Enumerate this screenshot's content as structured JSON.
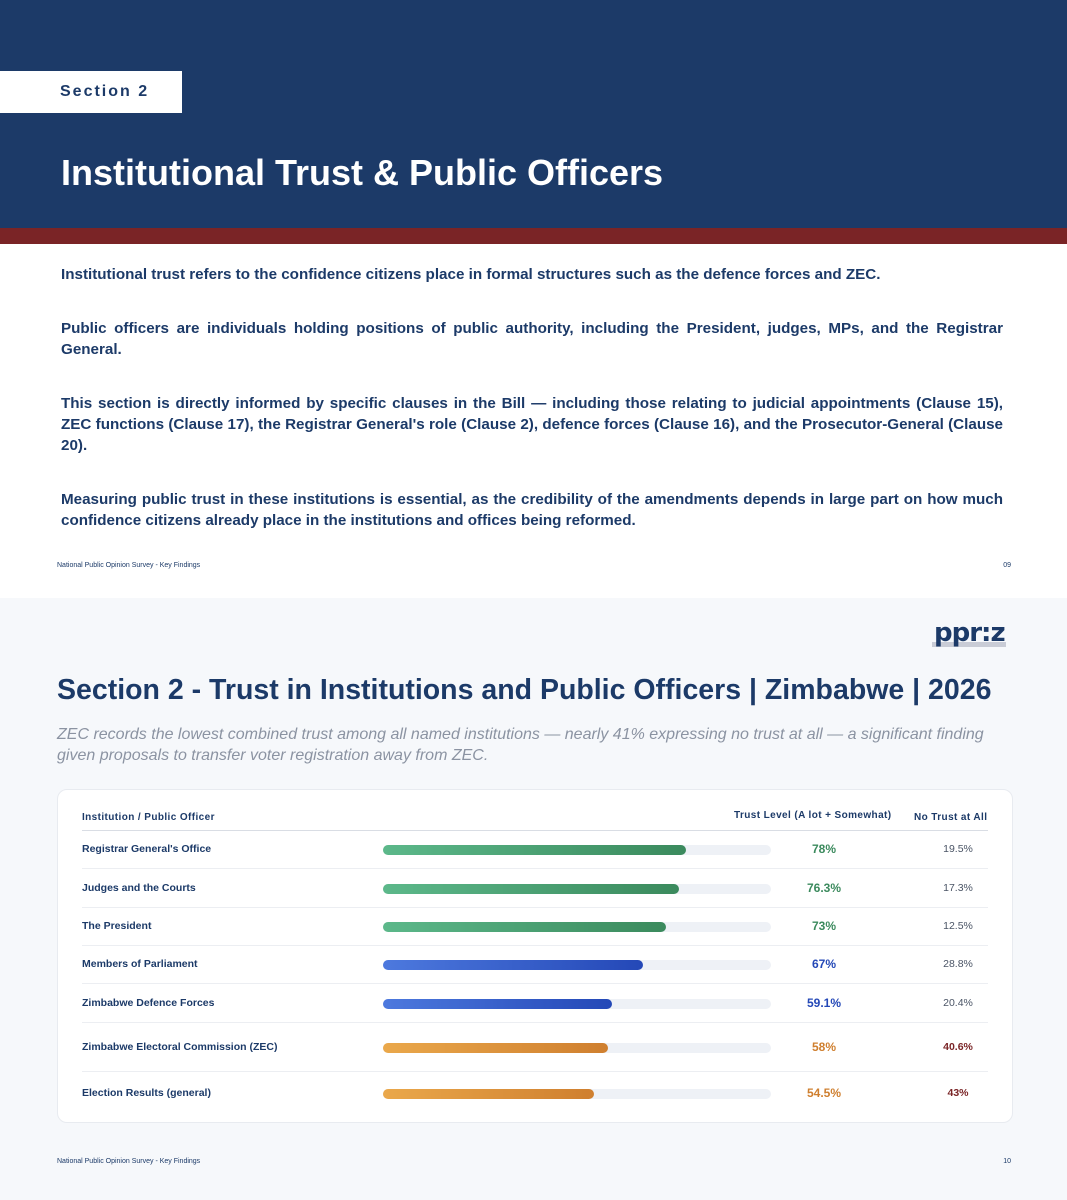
{
  "page1": {
    "section_tag": "Section 2",
    "title": "Institutional Trust & Public Officers",
    "paragraphs": [
      "Institutional trust refers to the confidence citizens place in formal structures such as the defence forces and ZEC.",
      "Public officers are individuals holding positions of public authority, including the President, judges, MPs, and the Registrar General.",
      "This section is directly informed by specific clauses in the Bill — including those relating to judicial appointments (Clause 15), ZEC functions (Clause 17), the Registrar General's role (Clause 2), defence forces (Clause 16), and the Prosecutor-General (Clause 20).",
      "Measuring public trust in these institutions is essential, as the credibility of the amendments depends in large part on how much confidence citizens already place in the institutions and offices being reformed."
    ],
    "footer": "National Public Opinion Survey - Key Findings",
    "page_number": "09",
    "colors": {
      "navy": "#1c3a68",
      "maroon": "#7a2426"
    }
  },
  "page2": {
    "logo": "ppr:z",
    "title": "Section 2 - Trust in Institutions and Public Officers | Zimbabwe | 2026",
    "subtitle": "ZEC records the lowest combined trust among all named institutions — nearly 41% expressing no trust at all — a significant finding given proposals to transfer voter registration away from ZEC.",
    "footer": "National Public Opinion Survey - Key Findings",
    "page_number": "10",
    "table_headers": {
      "institution": "Institution / Public Officer",
      "trust": "Trust Level (A lot + Somewhat)",
      "no_trust": "No Trust at All"
    }
  },
  "chart_data": {
    "type": "bar",
    "orientation": "horizontal",
    "categories": [
      "Registrar General's Office",
      "Judges and the Courts",
      "The President",
      "Members of Parliament",
      "Zimbabwe Defence Forces",
      "Zimbabwe Electoral Commission (ZEC)",
      "Election Results (general)"
    ],
    "series": [
      {
        "name": "Trust Level (A lot + Somewhat)",
        "values": [
          78,
          76.3,
          73,
          67,
          59.1,
          58,
          54.5
        ],
        "labels": [
          "78%",
          "76.3%",
          "73%",
          "67%",
          "59.1%",
          "58%",
          "54.5%"
        ]
      },
      {
        "name": "No Trust at All",
        "values": [
          19.5,
          17.3,
          12.5,
          28.8,
          20.4,
          40.6,
          43
        ],
        "labels": [
          "19.5%",
          "17.3%",
          "12.5%",
          "28.8%",
          "20.4%",
          "40.6%",
          "43%"
        ]
      }
    ],
    "bar_colors": [
      "green",
      "green",
      "green",
      "blue",
      "blue",
      "orange",
      "orange"
    ],
    "no_trust_highlight": [
      false,
      false,
      false,
      false,
      false,
      true,
      true
    ],
    "xlim": [
      0,
      100
    ],
    "colors": {
      "green": "#3b8a5d",
      "blue": "#2448b7",
      "orange": "#cf7f2f",
      "warn": "#7a2426"
    }
  }
}
